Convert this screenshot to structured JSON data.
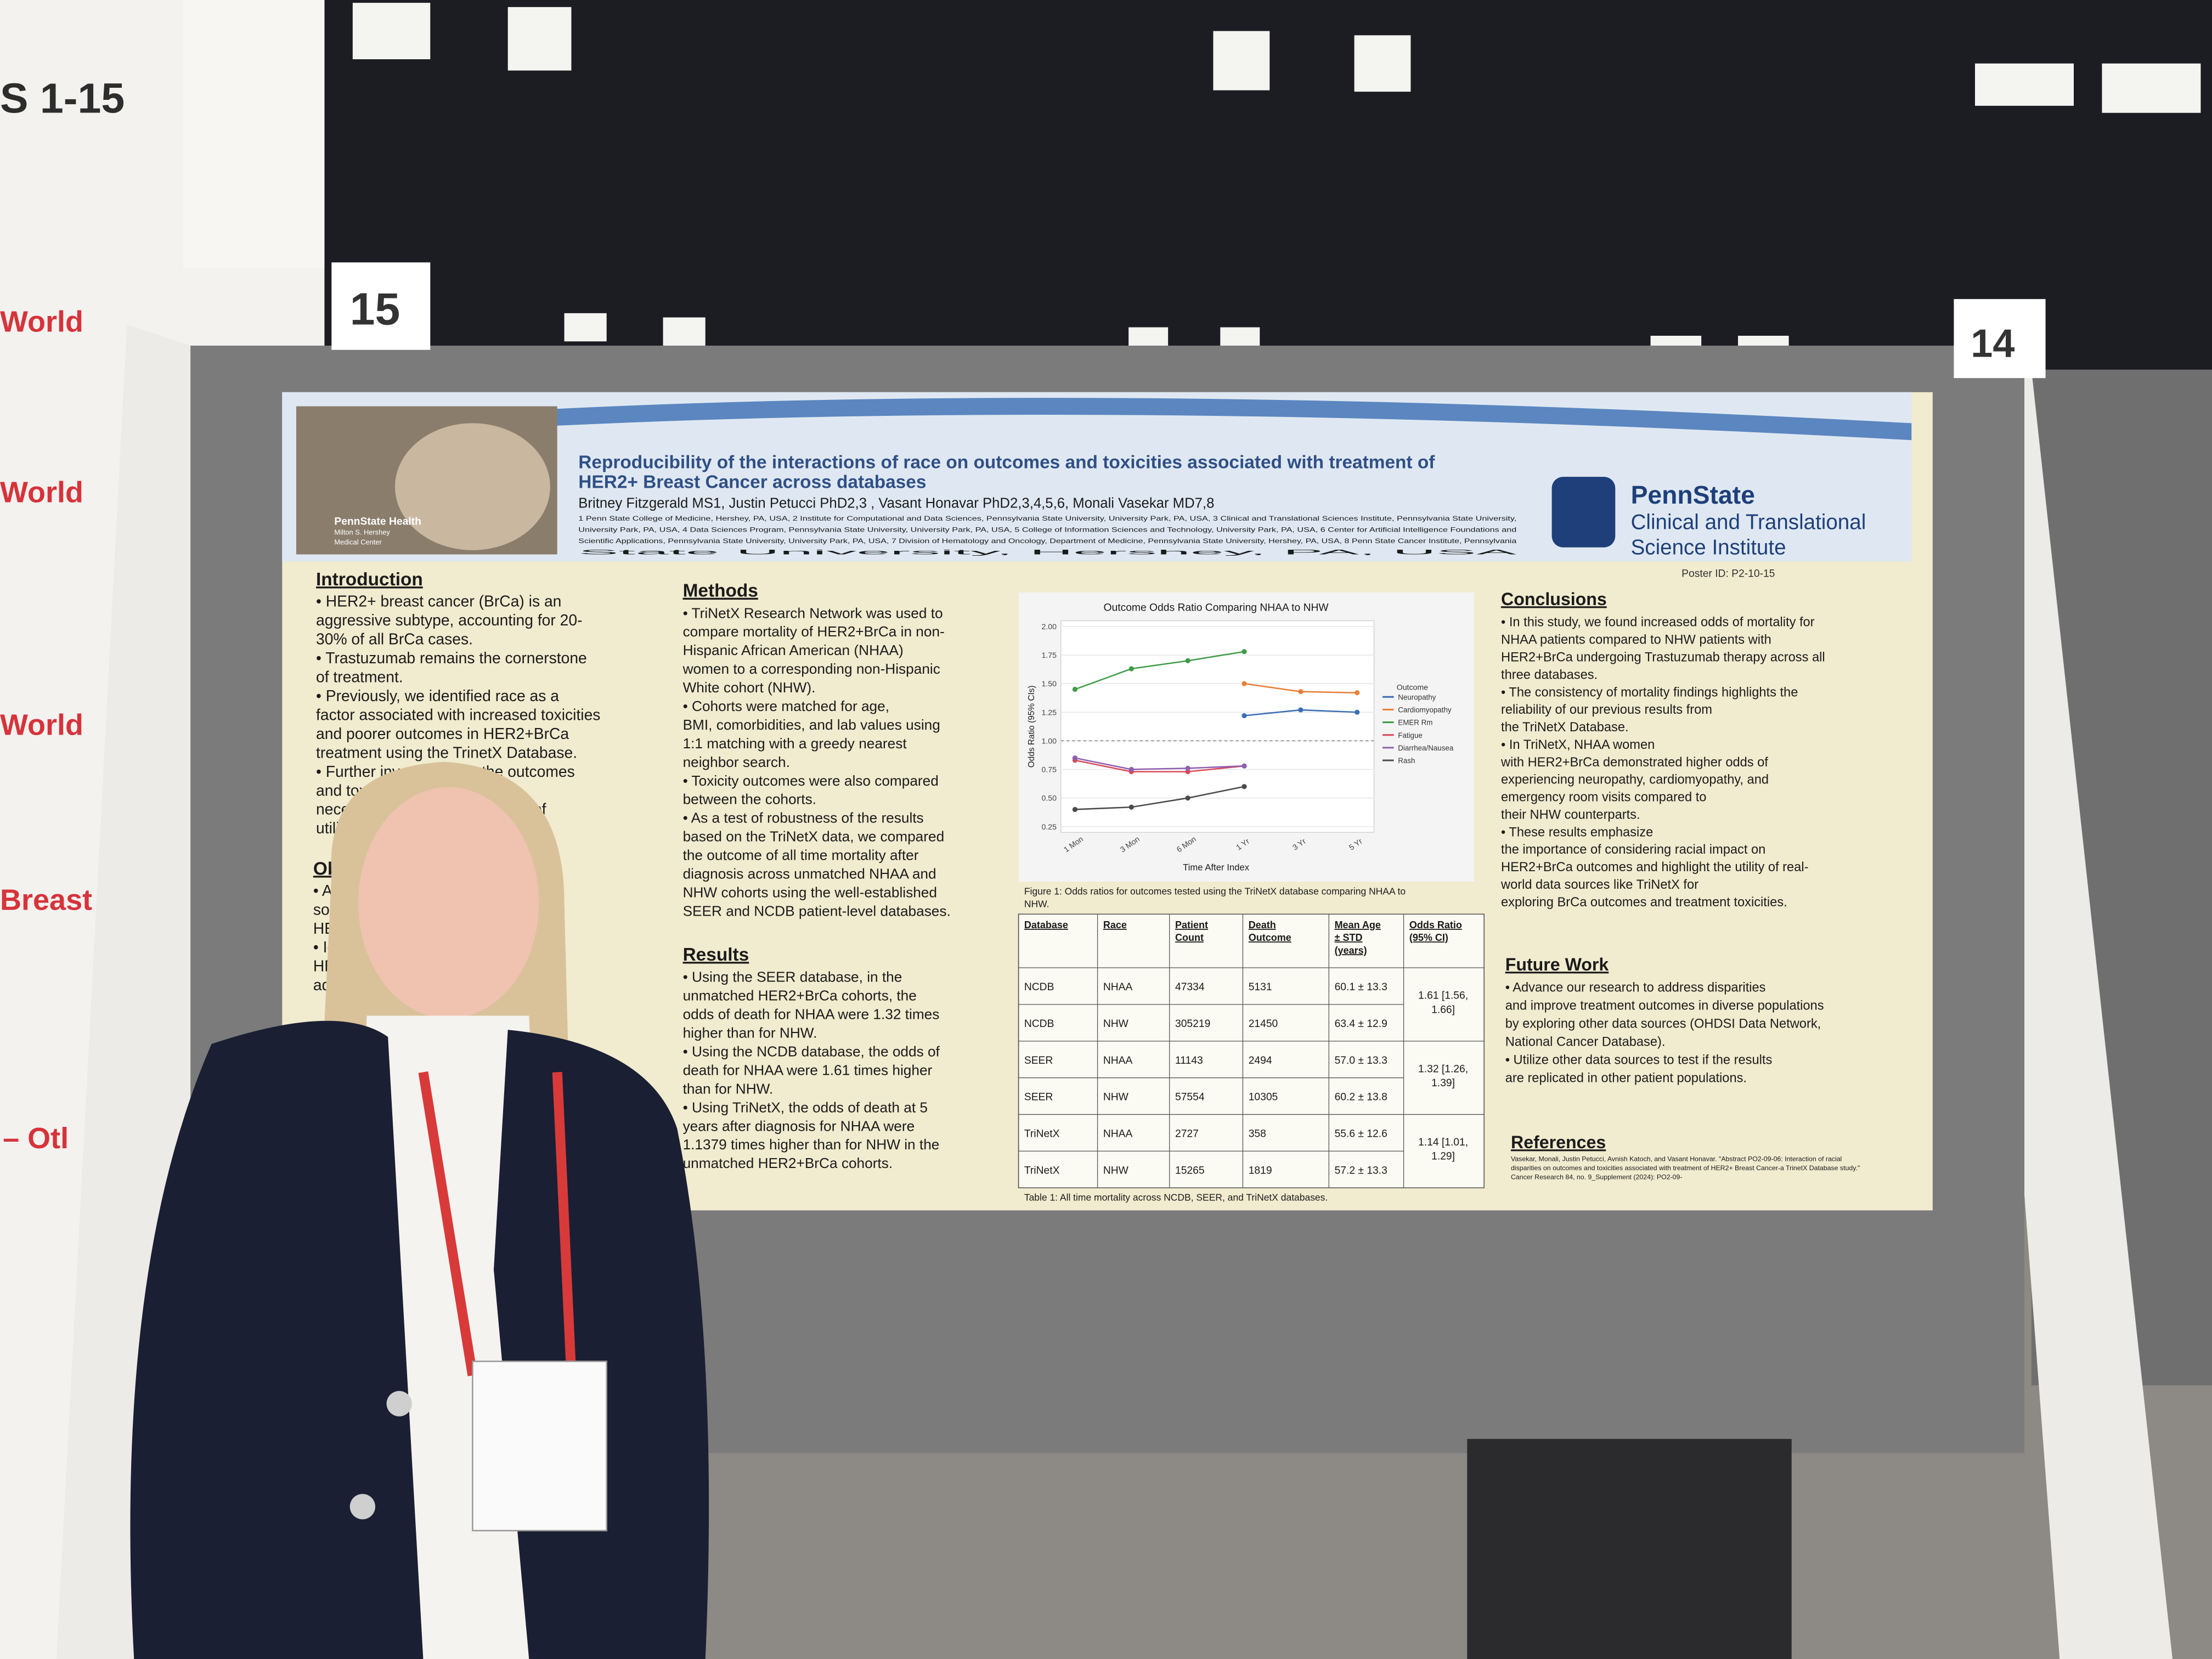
{
  "signage": {
    "left_header": "S 1-15",
    "left_lines": [
      "World",
      "World",
      "World",
      "Breast",
      "– Otl"
    ],
    "booth_15": "15",
    "booth_14": "14"
  },
  "poster": {
    "title_lines": [
      "Reproducibility of the interactions of race on outcomes and toxicities associated with treatment of",
      "HER2+ Breast Cancer across databases"
    ],
    "authors": "Britney Fitzgerald MS1, Justin Petucci PhD2,3 , Vasant Honavar PhD2,3,4,5,6, Monali Vasekar MD7,8",
    "affiliations": [
      "1 Penn State College of Medicine, Hershey, PA, USA, 2 Institute for Computational and Data Sciences, Pennsylvania State University, University Park, PA, USA, 3 Clinical and Translational Sciences Institute, Pennsylvania State University,",
      "University Park, PA, USA, 4 Data Sciences Program, Pennsylvania State University, University Park, PA, USA, 5 College of Information Sciences and Technology, University Park, PA, USA, 6 Center for Artificial Intelligence Foundations and",
      "Scientific Applications, Pennsylvania State University, University Park, PA, USA, 7 Division of Hematology and Oncology, Department of Medicine, Pennsylvania State University, Hershey, PA, USA, 8 Penn State Cancer Institute, Pennsylvania",
      "State University, Hershey, PA, USA"
    ],
    "logo_left": [
      "PennState Health",
      "Milton S. Hershey",
      "Medical Center"
    ],
    "logo_right": [
      "PennState",
      "Clinical and Translational",
      "Science Institute"
    ],
    "poster_id": "Poster ID: P2-10-15",
    "sections": [
      {
        "heading": "Introduction",
        "lines": [
          "• HER2+ breast cancer (BrCa) is an",
          "aggressive subtype, accounting for 20-",
          "30% of all BrCa cases.",
          "• Trastuzumab remains the cornerstone",
          "of treatment.",
          "• Previously, we identified race as a",
          "factor associated with increased toxicities",
          "and poorer outcomes in HER2+BrCa",
          "treatment using the TrinetX Database.",
          "• Further inv                   the outcomes",
          "and toxic                      os is",
          "necess                        portance of",
          "utilizing                       search."
        ]
      },
      {
        "heading": "Obje",
        "lines": [
          "• Ana                               data",
          "sourc                              xt of",
          "HER                                mes.",
          "• Iden",
          "HER                                mes to",
          "add                                utcomes"
        ]
      },
      {
        "heading": "Methods",
        "lines": [
          "• TriNetX Research Network was used to",
          "compare mortality of HER2+BrCa in non-",
          "Hispanic African American (NHAA)",
          "women to a corresponding non-Hispanic",
          "White cohort (NHW).",
          "• Cohorts were matched for age,",
          "BMI, comorbidities, and lab values using",
          "1:1 matching with a greedy nearest",
          "neighbor search.",
          "• Toxicity outcomes were also compared",
          "between the cohorts.",
          "• As a test of robustness of the results",
          "based on the TriNetX data, we compared",
          "the outcome of all time mortality after",
          "diagnosis across unmatched NHAA and",
          "NHW cohorts using the well-established",
          "SEER and NCDB patient-level databases."
        ]
      },
      {
        "heading": "Results",
        "lines": [
          "• Using the SEER database, in the",
          "unmatched HER2+BrCa cohorts, the",
          "odds of death for NHAA were 1.32 times",
          "higher than for NHW.",
          "• Using the NCDB database, the odds of",
          "death for NHAA were 1.61 times higher",
          "than for NHW.",
          "• Using TriNetX, the odds of death at 5",
          "years after diagnosis for NHAA were",
          "1.1379 times higher than for NHW in the",
          "unmatched HER2+BrCa cohorts."
        ]
      },
      {
        "heading": "Conclusions",
        "lines": [
          "• In this study, we found increased odds of mortality for",
          "NHAA patients compared to NHW patients with",
          "HER2+BrCa undergoing Trastuzumab therapy across all",
          "three databases.",
          "• The consistency of mortality findings highlights the",
          "reliability of our previous results from",
          "the TriNetX Database.",
          "• In TriNetX, NHAA women",
          "with HER2+BrCa demonstrated higher odds of",
          "experiencing neuropathy, cardiomyopathy, and",
          "emergency room visits compared to",
          "their NHW counterparts.",
          "• These results emphasize",
          "the importance of considering racial impact on",
          "HER2+BrCa outcomes and highlight the utility of real-",
          "world data sources like TriNetX for",
          "exploring BrCa outcomes and treatment toxicities."
        ]
      },
      {
        "heading": "Future Work",
        "lines": [
          "• Advance our research to address disparities",
          "and improve treatment outcomes in diverse populations",
          "by exploring other data sources (OHDSI Data Network,",
          "National Cancer Database).",
          "• Utilize other data sources to test if the results",
          "are replicated in other patient populations."
        ]
      },
      {
        "heading": "References",
        "lines": [
          "Vasekar, Monali, Justin Petucci, Avnish Katoch, and Vasant Honavar. \"Abstract PO2-09-06: Interaction of racial",
          "disparities on outcomes and toxicities associated with treatment of HER2+ Breast Cancer-a TrinetX Database study.\"",
          "Cancer Research 84, no. 9_Supplement (2024): PO2-09-"
        ]
      }
    ],
    "figure_caption": [
      "Figure 1: Odds ratios for outcomes tested using the TriNetX database comparing NHAA to",
      "NHW."
    ],
    "table": {
      "header": [
        [
          "Database"
        ],
        [
          "Race"
        ],
        [
          "Patient",
          "Count"
        ],
        [
          "Death",
          "Outcome"
        ],
        [
          "Mean Age",
          "± STD",
          "(years)"
        ],
        [
          "Odds Ratio",
          "(95% CI)"
        ]
      ],
      "rows": [
        [
          "NCDB",
          "NHAA",
          "47334",
          "5131",
          "60.1 ± 13.3"
        ],
        [
          "NCDB",
          "NHW",
          "305219",
          "21450",
          "63.4 ± 12.9"
        ],
        [
          "SEER",
          "NHAA",
          "11143",
          "2494",
          "57.0 ± 13.3"
        ],
        [
          "SEER",
          "NHW",
          "57554",
          "10305",
          "60.2 ± 13.8"
        ],
        [
          "TriNetX",
          "NHAA",
          "2727",
          "358",
          "55.6 ± 12.6"
        ],
        [
          "TriNetX",
          "NHW",
          "15265",
          "1819",
          "57.2 ± 13.3"
        ]
      ],
      "odds_ratios": [
        [
          "1.61 [1.56,",
          "1.66]"
        ],
        [
          "1.32 [1.26,",
          "1.39]"
        ],
        [
          "1.14 [1.01,",
          "1.29]"
        ]
      ]
    },
    "table_caption": "Table 1: All time mortality across NCDB, SEER, and TriNetX databases."
  },
  "chart_data": {
    "type": "line",
    "title": "Outcome Odds Ratio Comparing NHAA to NHW",
    "x_label": "Time After Index",
    "y_label": "Odds Ratio (95% CIs)",
    "legend_title": "Outcome",
    "legend": "right",
    "categories": [
      "1 Mon",
      "3 Mon",
      "6 Mon",
      "1 Yr",
      "3 Yr",
      "5 Yr"
    ],
    "ylim": [
      0.2,
      2.05
    ],
    "yticks": [
      0.25,
      {
        "value": 0.5,
        "label": "0.50"
      },
      0.75,
      {
        "value": 1,
        "label": "1.00"
      },
      1.25,
      {
        "value": 1.5,
        "label": "1.50"
      },
      1.75,
      {
        "value": 2,
        "label": "2.00"
      }
    ],
    "grid": true,
    "series": [
      {
        "name": "Neuropathy",
        "color": "#3b6fb6",
        "values": [
          null,
          null,
          null,
          1.22,
          1.27,
          1.25
        ]
      },
      {
        "name": "Cardiomyopathy",
        "color": "#e8803a",
        "values": [
          null,
          null,
          null,
          1.5,
          1.43,
          1.42
        ]
      },
      {
        "name": "EMER Rm",
        "color": "#3f9b47",
        "values": [
          1.45,
          1.63,
          1.7,
          1.78,
          null,
          null
        ]
      },
      {
        "name": "Fatigue",
        "color": "#d94b5a",
        "values": [
          0.83,
          0.73,
          0.73,
          0.78,
          null,
          null
        ]
      },
      {
        "name": "Diarrhea/Nausea",
        "color": "#8e5fb0",
        "values": [
          0.85,
          0.75,
          0.76,
          0.78,
          null,
          null
        ]
      },
      {
        "name": "Rash",
        "color": "#4a4a4a",
        "values": [
          0.4,
          0.42,
          0.5,
          0.6,
          null,
          null
        ]
      }
    ]
  }
}
